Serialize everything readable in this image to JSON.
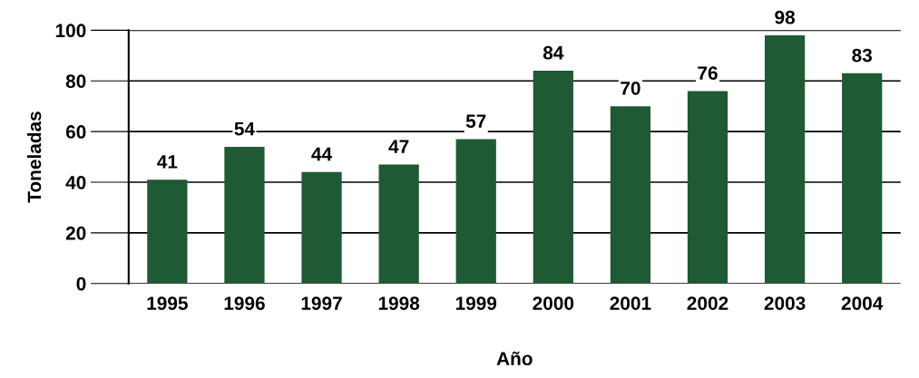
{
  "chart_data": {
    "type": "bar",
    "xlabel": "Año",
    "ylabel": "Toneladas",
    "categories": [
      "1995",
      "1996",
      "1997",
      "1998",
      "1999",
      "2000",
      "2001",
      "2002",
      "2003",
      "2004"
    ],
    "values": [
      41,
      54,
      44,
      47,
      57,
      84,
      70,
      76,
      98,
      83
    ],
    "color": "#1f5a35",
    "ylim": [
      0,
      100
    ],
    "yticks": [
      0,
      20,
      40,
      60,
      80,
      100
    ],
    "grid": "y",
    "data_labels": true
  }
}
